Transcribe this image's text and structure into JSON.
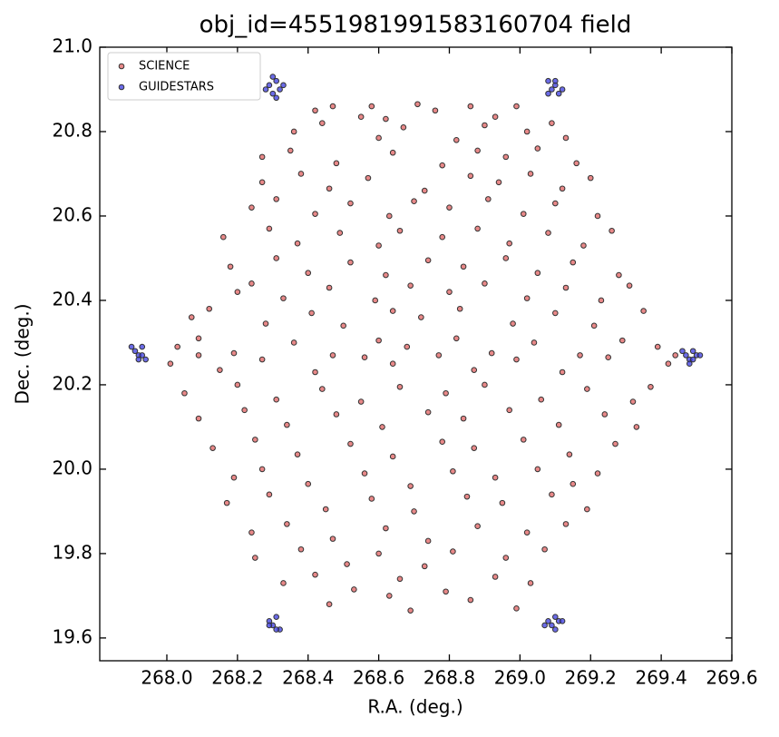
{
  "chart_data": {
    "type": "scatter",
    "title": "obj_id=4551981991583160704 field",
    "x_label": "R.A. (deg.)",
    "y_label": "Dec. (deg.)",
    "xlim": [
      267.81,
      269.6
    ],
    "ylim": [
      19.546,
      21.0
    ],
    "xticks": [
      {
        "value": 268,
        "label": "268.0"
      },
      268.2,
      268.4,
      268.6,
      268.8,
      {
        "value": 269,
        "label": "269.0"
      },
      269.2,
      269.4,
      269.6
    ],
    "yticks": [
      19.6,
      19.8,
      {
        "value": 20,
        "label": "20.0"
      },
      20.2,
      20.4,
      20.6,
      20.8,
      {
        "value": 21,
        "label": "21.0"
      }
    ],
    "legend": "upper left",
    "series": [
      {
        "name": "SCIENCE",
        "color": "#e06060",
        "x": [
          268.42,
          268.47,
          268.55,
          268.58,
          268.62,
          268.71,
          268.76,
          268.86,
          268.93,
          268.99,
          268.36,
          268.44,
          268.6,
          268.67,
          268.82,
          268.9,
          269.02,
          269.09,
          269.13,
          268.27,
          268.35,
          268.48,
          268.64,
          268.78,
          268.88,
          268.96,
          269.05,
          269.16,
          268.27,
          268.38,
          268.46,
          268.57,
          268.73,
          268.86,
          268.94,
          269.03,
          269.12,
          269.2,
          268.24,
          268.31,
          268.42,
          268.52,
          268.63,
          268.7,
          268.8,
          268.91,
          269.01,
          269.1,
          269.22,
          268.16,
          268.29,
          268.37,
          268.49,
          268.6,
          268.66,
          268.78,
          268.88,
          268.97,
          269.08,
          269.18,
          269.26,
          268.18,
          268.31,
          268.4,
          268.52,
          268.62,
          268.74,
          268.84,
          268.96,
          269.05,
          269.15,
          269.28,
          268.2,
          268.24,
          268.33,
          268.46,
          268.59,
          268.69,
          268.8,
          268.9,
          269.02,
          269.13,
          269.23,
          269.31,
          268.07,
          268.12,
          268.28,
          268.41,
          268.5,
          268.64,
          268.72,
          268.83,
          268.98,
          269.1,
          269.21,
          269.35,
          268.03,
          268.09,
          268.19,
          268.36,
          268.47,
          268.6,
          268.68,
          268.82,
          268.92,
          269.04,
          269.17,
          269.29,
          269.39,
          268.01,
          268.09,
          268.15,
          268.27,
          268.42,
          268.56,
          268.64,
          268.77,
          268.87,
          268.99,
          269.12,
          269.25,
          269.42,
          269.44,
          268.05,
          268.2,
          268.31,
          268.44,
          268.55,
          268.66,
          268.79,
          268.9,
          269.06,
          269.19,
          269.32,
          269.37,
          268.09,
          268.22,
          268.34,
          268.48,
          268.61,
          268.74,
          268.84,
          268.97,
          269.11,
          269.24,
          269.33,
          268.13,
          268.25,
          268.37,
          268.52,
          268.64,
          268.78,
          268.87,
          269.01,
          269.14,
          269.27,
          268.19,
          268.27,
          268.4,
          268.56,
          268.69,
          268.81,
          268.93,
          269.05,
          269.15,
          269.22,
          268.17,
          268.29,
          268.45,
          268.58,
          268.7,
          268.85,
          268.95,
          269.09,
          269.19,
          268.24,
          268.34,
          268.47,
          268.62,
          268.74,
          268.88,
          269.02,
          269.13,
          268.25,
          268.38,
          268.51,
          268.6,
          268.73,
          268.81,
          268.96,
          269.07,
          268.33,
          268.42,
          268.53,
          268.66,
          268.79,
          268.93,
          269.03,
          268.46,
          268.63,
          268.69,
          268.86,
          268.99
        ],
        "values": [
          20.85,
          20.86,
          20.835,
          20.86,
          20.83,
          20.865,
          20.85,
          20.86,
          20.835,
          20.86,
          20.8,
          20.82,
          20.785,
          20.81,
          20.78,
          20.815,
          20.8,
          20.82,
          20.785,
          20.74,
          20.755,
          20.725,
          20.75,
          20.72,
          20.755,
          20.74,
          20.76,
          20.725,
          20.68,
          20.7,
          20.665,
          20.69,
          20.66,
          20.695,
          20.68,
          20.7,
          20.665,
          20.69,
          20.62,
          20.64,
          20.605,
          20.63,
          20.6,
          20.635,
          20.62,
          20.64,
          20.605,
          20.63,
          20.6,
          20.55,
          20.57,
          20.535,
          20.56,
          20.53,
          20.565,
          20.55,
          20.57,
          20.535,
          20.56,
          20.53,
          20.565,
          20.48,
          20.5,
          20.465,
          20.49,
          20.46,
          20.495,
          20.48,
          20.5,
          20.465,
          20.49,
          20.46,
          20.42,
          20.44,
          20.405,
          20.43,
          20.4,
          20.435,
          20.42,
          20.44,
          20.405,
          20.43,
          20.4,
          20.435,
          20.36,
          20.38,
          20.345,
          20.37,
          20.34,
          20.375,
          20.36,
          20.38,
          20.345,
          20.37,
          20.34,
          20.375,
          20.29,
          20.31,
          20.275,
          20.3,
          20.27,
          20.305,
          20.29,
          20.31,
          20.275,
          20.3,
          20.27,
          20.305,
          20.29,
          20.25,
          20.27,
          20.235,
          20.26,
          20.23,
          20.265,
          20.25,
          20.27,
          20.235,
          20.26,
          20.23,
          20.265,
          20.25,
          20.27,
          20.18,
          20.2,
          20.165,
          20.19,
          20.16,
          20.195,
          20.18,
          20.2,
          20.165,
          20.19,
          20.16,
          20.195,
          20.12,
          20.14,
          20.105,
          20.13,
          20.1,
          20.135,
          20.12,
          20.14,
          20.105,
          20.13,
          20.1,
          20.05,
          20.07,
          20.035,
          20.06,
          20.03,
          20.065,
          20.05,
          20.07,
          20.035,
          20.06,
          19.98,
          20.0,
          19.965,
          19.99,
          19.96,
          19.995,
          19.98,
          20.0,
          19.965,
          19.99,
          19.92,
          19.94,
          19.905,
          19.93,
          19.9,
          19.935,
          19.92,
          19.94,
          19.905,
          19.85,
          19.87,
          19.835,
          19.86,
          19.83,
          19.865,
          19.85,
          19.87,
          19.79,
          19.81,
          19.775,
          19.8,
          19.77,
          19.805,
          19.79,
          19.81,
          19.73,
          19.75,
          19.715,
          19.74,
          19.71,
          19.745,
          19.73,
          19.68,
          19.7,
          19.665,
          19.69,
          19.67
        ]
      },
      {
        "name": "GUIDESTARS",
        "color": "#3a3ae0",
        "x": [
          268.29,
          268.31,
          268.33,
          268.3,
          268.28,
          268.32,
          268.3,
          268.31,
          269.08,
          269.1,
          269.12,
          269.09,
          269.11,
          269.08,
          269.1,
          267.91,
          267.93,
          267.92,
          267.94,
          267.9,
          267.92,
          267.93,
          269.47,
          269.49,
          269.48,
          269.5,
          269.46,
          269.48,
          269.49,
          269.51,
          268.29,
          268.31,
          268.3,
          268.32,
          268.29,
          268.31,
          269.08,
          269.1,
          269.09,
          269.11,
          269.07,
          269.1,
          269.12
        ],
        "values": [
          20.91,
          20.92,
          20.91,
          20.93,
          20.9,
          20.9,
          20.89,
          20.88,
          20.92,
          20.91,
          20.9,
          20.9,
          20.89,
          20.89,
          20.92,
          20.28,
          20.29,
          20.27,
          20.26,
          20.29,
          20.26,
          20.27,
          20.27,
          20.28,
          20.26,
          20.27,
          20.28,
          20.25,
          20.26,
          20.27,
          19.64,
          19.65,
          19.63,
          19.62,
          19.63,
          19.62,
          19.64,
          19.65,
          19.63,
          19.64,
          19.63,
          19.62,
          19.64
        ]
      }
    ]
  }
}
